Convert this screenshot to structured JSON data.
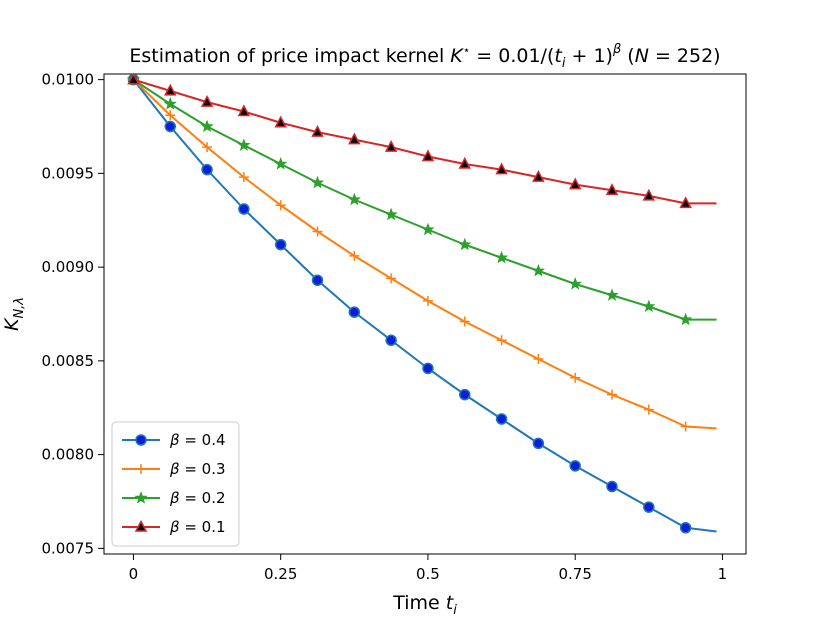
{
  "chart_data": {
    "type": "line",
    "title": {
      "prefix": "Estimation of price impact kernel ",
      "k": "K",
      "kstar": "⋆",
      "eq": " = 0.01/(",
      "t": "t",
      "ti": "i",
      "pow": " + 1)",
      "beta": "β",
      "nopen": " (",
      "n": "N",
      "nval": " = 252)"
    },
    "xlabel": {
      "main": "Time ",
      "var": "t",
      "sub": "i"
    },
    "ylabel": {
      "main": "K",
      "sub": "N,λ"
    },
    "xlim": [
      -0.05,
      1.04
    ],
    "ylim": [
      0.00747,
      0.01003
    ],
    "xticks": [
      0,
      0.25,
      0.5,
      0.75,
      1
    ],
    "xtick_labels": [
      "0",
      "0.25",
      "0.5",
      "0.75",
      "1"
    ],
    "yticks": [
      0.0075,
      0.008,
      0.0085,
      0.009,
      0.0095,
      0.01
    ],
    "ytick_labels": [
      "0.0075",
      "0.0080",
      "0.0085",
      "0.0090",
      "0.0095",
      "0.0100"
    ],
    "legend_position": "lower-left",
    "series": [
      {
        "name": "β = 0.4",
        "legend_beta": "β",
        "legend_val": " = 0.4",
        "color": "#1f77b4",
        "marker": "circle",
        "marker_face": "#0b1fd8",
        "x": [
          0,
          0.0625,
          0.125,
          0.1875,
          0.25,
          0.3125,
          0.375,
          0.4375,
          0.5,
          0.5625,
          0.625,
          0.6875,
          0.75,
          0.8125,
          0.875,
          0.9375,
          0.99
        ],
        "y": [
          0.01,
          0.00975,
          0.00952,
          0.00931,
          0.00912,
          0.00893,
          0.00876,
          0.00861,
          0.00846,
          0.00832,
          0.00819,
          0.00806,
          0.00794,
          0.00783,
          0.00772,
          0.00761,
          0.00759
        ]
      },
      {
        "name": "β = 0.3",
        "legend_beta": "β",
        "legend_val": " = 0.3",
        "color": "#ff7f0e",
        "marker": "plus",
        "marker_face": "#ff7f0e",
        "x": [
          0,
          0.0625,
          0.125,
          0.1875,
          0.25,
          0.3125,
          0.375,
          0.4375,
          0.5,
          0.5625,
          0.625,
          0.6875,
          0.75,
          0.8125,
          0.875,
          0.9375,
          0.99
        ],
        "y": [
          0.01,
          0.00981,
          0.00964,
          0.00948,
          0.00933,
          0.00919,
          0.00906,
          0.00894,
          0.00882,
          0.00871,
          0.00861,
          0.00851,
          0.00841,
          0.00832,
          0.00824,
          0.00815,
          0.00814
        ]
      },
      {
        "name": "β = 0.2",
        "legend_beta": "β",
        "legend_val": " = 0.2",
        "color": "#2ca02c",
        "marker": "star",
        "marker_face": "#2ca02c",
        "x": [
          0,
          0.0625,
          0.125,
          0.1875,
          0.25,
          0.3125,
          0.375,
          0.4375,
          0.5,
          0.5625,
          0.625,
          0.6875,
          0.75,
          0.8125,
          0.875,
          0.9375,
          0.99
        ],
        "y": [
          0.01,
          0.00987,
          0.00975,
          0.00965,
          0.00955,
          0.00945,
          0.00936,
          0.00928,
          0.0092,
          0.00912,
          0.00905,
          0.00898,
          0.00891,
          0.00885,
          0.00879,
          0.00872,
          0.00872
        ]
      },
      {
        "name": "β = 0.1",
        "legend_beta": "β",
        "legend_val": " = 0.1",
        "color": "#d62728",
        "marker": "triangle",
        "marker_face": "#d62728",
        "x": [
          0,
          0.0625,
          0.125,
          0.1875,
          0.25,
          0.3125,
          0.375,
          0.4375,
          0.5,
          0.5625,
          0.625,
          0.6875,
          0.75,
          0.8125,
          0.875,
          0.9375,
          0.99
        ],
        "y": [
          0.01,
          0.00994,
          0.00988,
          0.00983,
          0.00977,
          0.00972,
          0.00968,
          0.00964,
          0.00959,
          0.00955,
          0.00952,
          0.00948,
          0.00944,
          0.00941,
          0.00938,
          0.00934,
          0.00934
        ]
      }
    ]
  }
}
